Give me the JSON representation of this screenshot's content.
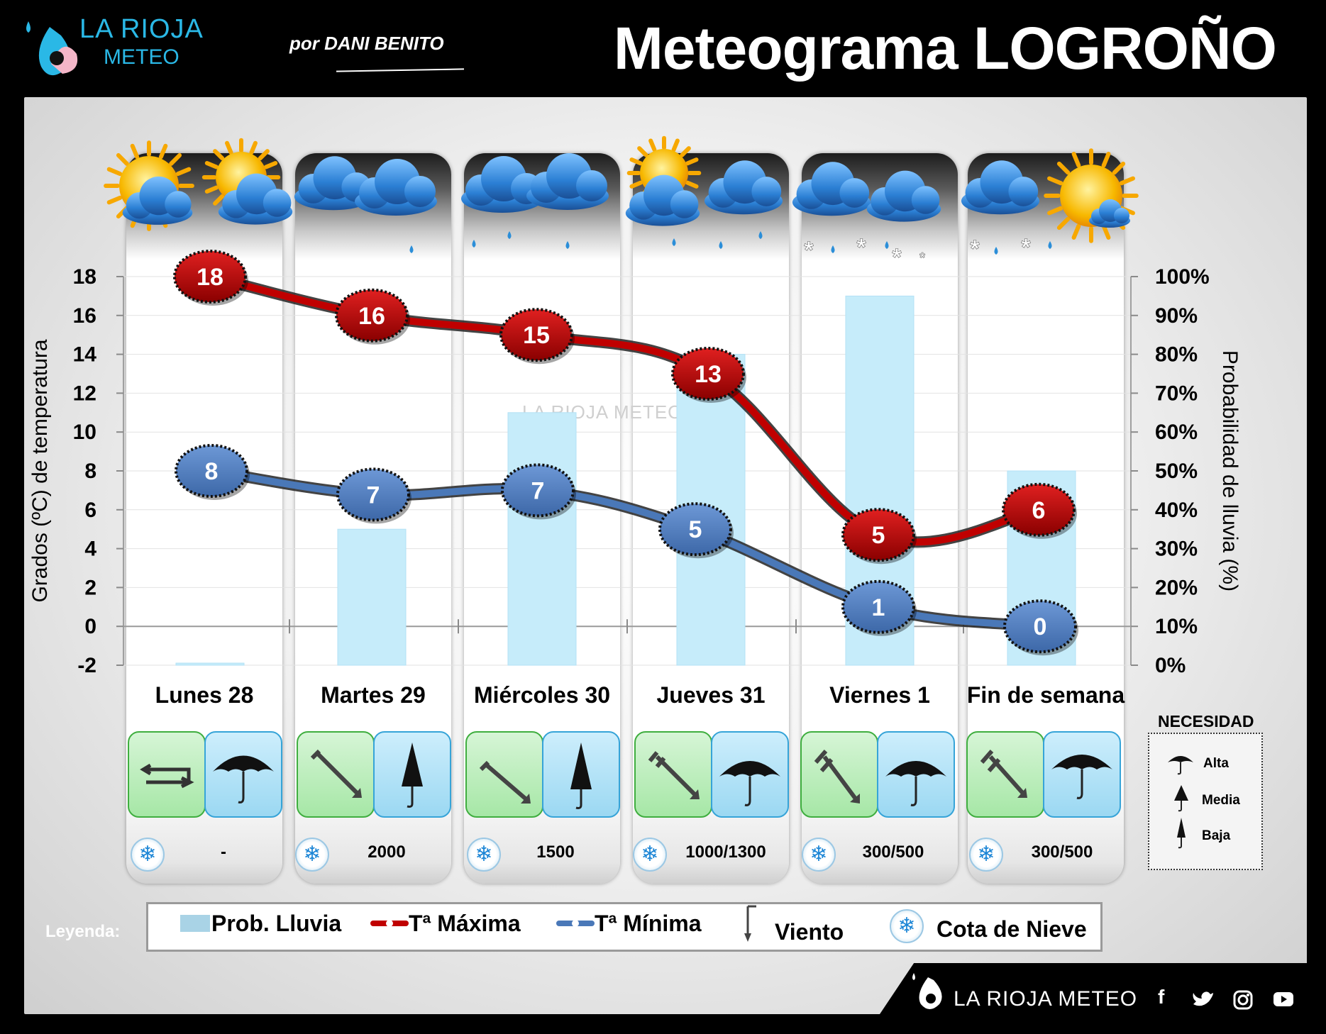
{
  "header": {
    "brand_name": "LA RIOJA",
    "brand_sub": "METEO",
    "author": "por DANI BENITO",
    "title": "Meteograma LOGROÑO"
  },
  "colors": {
    "max_line": "#c00000",
    "min_line": "#4a78b8",
    "rain_bar": "#c6ecfa",
    "wind_box": "#a6e7a6",
    "umbrella_box": "#9bd8f2"
  },
  "days": [
    {
      "label": "Lunes 28",
      "weather_icon": "sun-cloud-icon",
      "wind_icon": "variable-wind-icon",
      "umbrella_icon": "umbrella-open-icon",
      "snow_level": "-"
    },
    {
      "label": "Martes 29",
      "weather_icon": "rain-cloud-icon",
      "wind_icon": "wind-arrow-icon",
      "umbrella_icon": "umbrella-closed-icon",
      "snow_level": "2000"
    },
    {
      "label": "Miércoles 30",
      "weather_icon": "rain-cloud-icon",
      "wind_icon": "wind-arrow-icon",
      "umbrella_icon": "umbrella-closed-icon",
      "snow_level": "1500"
    },
    {
      "label": "Jueves 31",
      "weather_icon": "sun-rain-cloud-icon",
      "wind_icon": "wind-arrow-icon",
      "umbrella_icon": "umbrella-open-icon",
      "snow_level": "1000/1300"
    },
    {
      "label": "Viernes 1",
      "weather_icon": "snow-cloud-icon",
      "wind_icon": "wind-arrow-icon",
      "umbrella_icon": "umbrella-open-icon",
      "snow_level": "300/500"
    },
    {
      "label": "Fin de semana",
      "weather_icon": "snow-sun-cloud-icon",
      "wind_icon": "wind-arrow-icon",
      "umbrella_icon": "umbrella-open-icon",
      "snow_level": "300/500"
    }
  ],
  "chart_data": {
    "type": "line",
    "categories": [
      "Lunes 28",
      "Martes 29",
      "Miércoles 30",
      "Jueves 31",
      "Viernes 1",
      "Fin de semana"
    ],
    "series": [
      {
        "name": "Tª Máxima",
        "type": "line",
        "values": [
          18,
          16,
          15,
          13,
          5,
          6
        ]
      },
      {
        "name": "Tª Mínima",
        "type": "line",
        "values": [
          8,
          7,
          7,
          5,
          1,
          0
        ]
      },
      {
        "name": "Prob. Lluvia",
        "type": "bar",
        "axis": "right",
        "values": [
          0,
          35,
          65,
          80,
          95,
          50
        ]
      }
    ],
    "ylabel": "Grados (ºC) de temperatura",
    "ylabel_right": "Probabilidad de lluvia (%)",
    "ylim": [
      -2,
      18
    ],
    "ylim_right": [
      0,
      100
    ],
    "yticks": [
      "18",
      "16",
      "14",
      "12",
      "10",
      "8",
      "6",
      "4",
      "2",
      "0",
      "-2"
    ],
    "yticks_right": [
      "100%",
      "90%",
      "80%",
      "70%",
      "60%",
      "50%",
      "40%",
      "30%",
      "20%",
      "10%",
      "0%"
    ],
    "grid": true
  },
  "legend": {
    "title": "Leyenda:",
    "rain": "Prob. Lluvia",
    "max": "Tª Máxima",
    "min": "Tª Mínima",
    "wind": "Viento",
    "snow": "Cota de Nieve"
  },
  "necesidad": {
    "title": "NECESIDAD",
    "items": [
      "Alta",
      "Media",
      "Baja"
    ]
  },
  "watermark": "LA RIOJA METEO",
  "footer": {
    "brand": "LA RIOJA METEO",
    "social": [
      "facebook-icon",
      "twitter-icon",
      "instagram-icon",
      "youtube-icon"
    ]
  }
}
